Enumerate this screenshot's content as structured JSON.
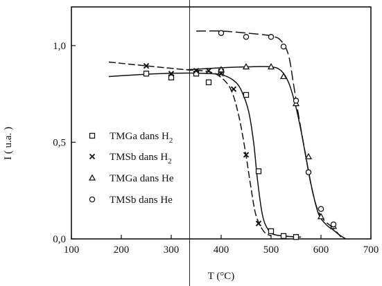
{
  "chart_data": {
    "type": "scatter",
    "xlabel": "T (°C)",
    "ylabel": "I ( u.a. )",
    "xlim": [
      100,
      700
    ],
    "ylim": [
      0,
      1.2
    ],
    "x_ticks": [
      100,
      200,
      300,
      400,
      500,
      600,
      700
    ],
    "y_ticks": [
      0,
      0.5,
      1.0
    ],
    "x_tick_labels": [
      "100",
      "200",
      "300",
      "400",
      "500",
      "600",
      "700"
    ],
    "y_tick_labels": [
      "0,0",
      "0,5",
      "1,0"
    ],
    "legend_position": "left",
    "series": [
      {
        "name": "TMGa dans H",
        "subscript": "2",
        "marker": "square",
        "points": [
          [
            250,
            0.855
          ],
          [
            300,
            0.835
          ],
          [
            350,
            0.855
          ],
          [
            375,
            0.81
          ],
          [
            400,
            0.865
          ],
          [
            450,
            0.745
          ],
          [
            475,
            0.35
          ],
          [
            500,
            0.04
          ],
          [
            525,
            0.015
          ],
          [
            550,
            0.01
          ]
        ],
        "curve": [
          [
            175,
            0.84
          ],
          [
            250,
            0.852
          ],
          [
            330,
            0.858
          ],
          [
            375,
            0.855
          ],
          [
            400,
            0.85
          ],
          [
            425,
            0.82
          ],
          [
            440,
            0.77
          ],
          [
            455,
            0.66
          ],
          [
            465,
            0.5
          ],
          [
            473,
            0.3
          ],
          [
            483,
            0.12
          ],
          [
            495,
            0.045
          ],
          [
            510,
            0.02
          ],
          [
            550,
            0.01
          ],
          [
            560,
            0.01
          ]
        ]
      },
      {
        "name": "TMSb dans H",
        "subscript": "2",
        "marker": "x",
        "points": [
          [
            250,
            0.895
          ],
          [
            300,
            0.855
          ],
          [
            350,
            0.87
          ],
          [
            375,
            0.87
          ],
          [
            400,
            0.855
          ],
          [
            425,
            0.775
          ],
          [
            450,
            0.435
          ],
          [
            475,
            0.08
          ]
        ],
        "curve": [
          [
            175,
            0.915
          ],
          [
            250,
            0.895
          ],
          [
            330,
            0.875
          ],
          [
            375,
            0.865
          ],
          [
            400,
            0.835
          ],
          [
            420,
            0.77
          ],
          [
            435,
            0.64
          ],
          [
            448,
            0.46
          ],
          [
            460,
            0.26
          ],
          [
            470,
            0.12
          ],
          [
            485,
            0.04
          ],
          [
            500,
            0.015
          ]
        ]
      },
      {
        "name": "TMGa dans He",
        "marker": "triangle",
        "points": [
          [
            400,
            0.875
          ],
          [
            450,
            0.89
          ],
          [
            500,
            0.89
          ],
          [
            525,
            0.84
          ],
          [
            550,
            0.7
          ],
          [
            575,
            0.425
          ],
          [
            600,
            0.115
          ],
          [
            625,
            0.065
          ]
        ],
        "curve": [
          [
            330,
            0.875
          ],
          [
            400,
            0.885
          ],
          [
            450,
            0.89
          ],
          [
            500,
            0.89
          ],
          [
            520,
            0.87
          ],
          [
            535,
            0.81
          ],
          [
            548,
            0.7
          ],
          [
            560,
            0.56
          ],
          [
            570,
            0.42
          ],
          [
            582,
            0.26
          ],
          [
            595,
            0.13
          ],
          [
            610,
            0.075
          ],
          [
            625,
            0.045
          ],
          [
            640,
            0.015
          ],
          [
            650,
            0.0
          ]
        ]
      },
      {
        "name": "TMSb dans He",
        "marker": "circle",
        "points": [
          [
            400,
            1.065
          ],
          [
            450,
            1.045
          ],
          [
            500,
            1.045
          ],
          [
            525,
            0.995
          ],
          [
            550,
            0.715
          ],
          [
            575,
            0.345
          ],
          [
            600,
            0.155
          ],
          [
            625,
            0.075
          ]
        ],
        "curve": [
          [
            350,
            1.075
          ],
          [
            400,
            1.075
          ],
          [
            450,
            1.065
          ],
          [
            500,
            1.05
          ],
          [
            520,
            1.025
          ],
          [
            535,
            0.95
          ],
          [
            545,
            0.8
          ],
          [
            555,
            0.64
          ],
          [
            568,
            0.45
          ],
          [
            580,
            0.28
          ],
          [
            592,
            0.16
          ],
          [
            605,
            0.1
          ],
          [
            618,
            0.07
          ],
          [
            630,
            0.04
          ],
          [
            640,
            0.01
          ]
        ]
      }
    ]
  }
}
